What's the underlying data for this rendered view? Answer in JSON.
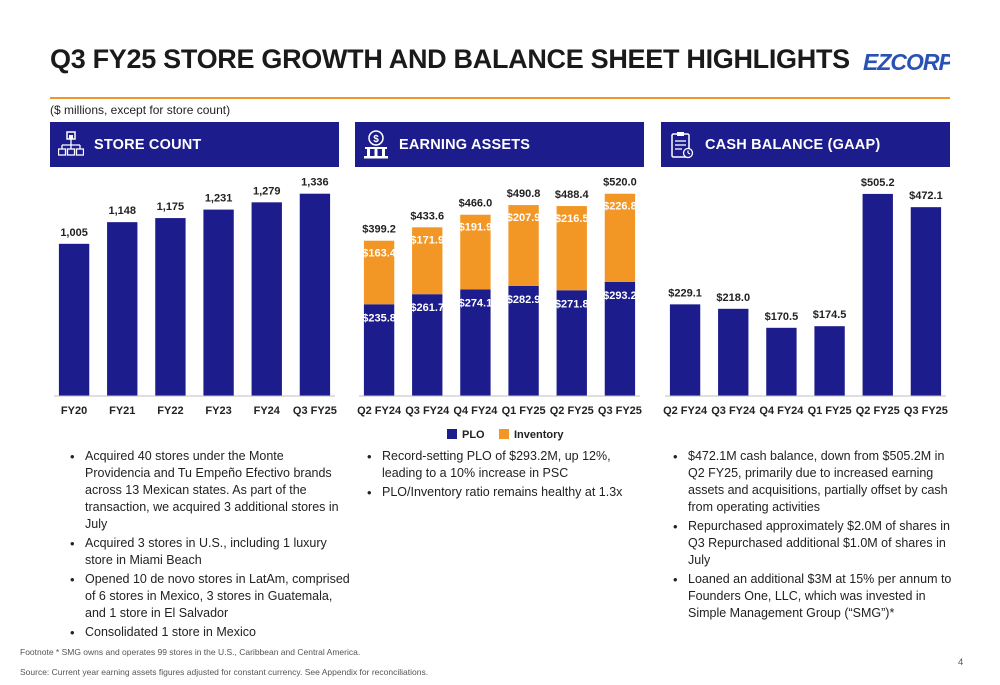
{
  "header": {
    "title": "Q3 FY25 STORE GROWTH AND BALANCE SHEET HIGHLIGHTS",
    "subtitle": "($ millions, except for store count)",
    "logo_text": "EZCORP"
  },
  "colors": {
    "navy": "#1c1c8c",
    "orange": "#f29626"
  },
  "panels": [
    {
      "label": "STORE COUNT",
      "icon": "store-network-icon"
    },
    {
      "label": "EARNING ASSETS",
      "icon": "money-building-icon"
    },
    {
      "label": "CASH BALANCE (GAAP)",
      "icon": "clipboard-icon"
    }
  ],
  "chart_data": [
    {
      "type": "bar",
      "categories": [
        "FY20",
        "FY21",
        "FY22",
        "FY23",
        "FY24",
        "Q3 FY25"
      ],
      "values": [
        1005,
        1148,
        1175,
        1231,
        1279,
        1336
      ],
      "labels": [
        "1,005",
        "1,148",
        "1,175",
        "1,231",
        "1,279",
        "1,336"
      ],
      "ylim": [
        0,
        1400
      ]
    },
    {
      "type": "bar",
      "stacked": true,
      "categories": [
        "Q2 FY24",
        "Q3 FY24",
        "Q4 FY24",
        "Q1 FY25",
        "Q2 FY25",
        "Q3 FY25"
      ],
      "series": [
        {
          "name": "PLO",
          "values": [
            235.8,
            261.7,
            274.1,
            282.9,
            271.8,
            293.2
          ],
          "labels": [
            "$235.8",
            "$261.7",
            "$274.1",
            "$282.9",
            "$271.8",
            "$293.2"
          ]
        },
        {
          "name": "Inventory",
          "values": [
            163.4,
            171.9,
            191.9,
            207.9,
            216.5,
            226.8
          ],
          "labels": [
            "$163.4",
            "$171.9",
            "$191.9",
            "$207.9",
            "$216.5",
            "$226.8"
          ]
        }
      ],
      "totals": [
        399.2,
        433.6,
        466.0,
        490.8,
        488.4,
        520.0
      ],
      "total_labels": [
        "$399.2",
        "$433.6",
        "$466.0",
        "$490.8",
        "$488.4",
        "$520.0"
      ],
      "ylim": [
        0,
        545
      ],
      "legend": "bottom"
    },
    {
      "type": "bar",
      "categories": [
        "Q2 FY24",
        "Q3 FY24",
        "Q4 FY24",
        "Q1 FY25",
        "Q2 FY25",
        "Q3 FY25"
      ],
      "values": [
        229.1,
        218.0,
        170.5,
        174.5,
        505.2,
        472.1
      ],
      "labels": [
        "$229.1",
        "$218.0",
        "$170.5",
        "$174.5",
        "$505.2",
        "$472.1"
      ],
      "ylim": [
        0,
        530
      ]
    }
  ],
  "bullets": {
    "store": [
      "Acquired 40 stores under the Monte Providencia and Tu Empeño Efectivo brands across 13 Mexican states. As part of the transaction, we acquired  3 additional stores in July",
      "Acquired 3 stores in U.S., including 1 luxury store in Miami Beach",
      "Opened 10 de novo stores in LatAm, comprised of 6 stores in Mexico, 3 stores in Guatemala, and 1 store in El Salvador",
      "Consolidated 1 store in Mexico"
    ],
    "earning": [
      "Record-setting PLO of $293.2M, up 12%, leading to a 10% increase in PSC",
      "PLO/Inventory ratio remains healthy at 1.3x"
    ],
    "cash": [
      "$472.1M cash balance, down from $505.2M in Q2 FY25, primarily due to increased earning assets and acquisitions, partially offset by cash from operating activities",
      "Repurchased approximately $2.0M of shares in Q3 Repurchased additional $1.0M of shares in July",
      "Loaned an additional $3M at 15% per annum  to Founders One, LLC, which was invested in Simple Management Group (“SMG”)*"
    ]
  },
  "footer": {
    "footnote": "Footnote * SMG owns and operates 99 stores in the U.S., Caribbean and Central America.",
    "source": "Source: Current year earning assets figures adjusted for constant currency. See Appendix for reconciliations.",
    "page": "4"
  }
}
